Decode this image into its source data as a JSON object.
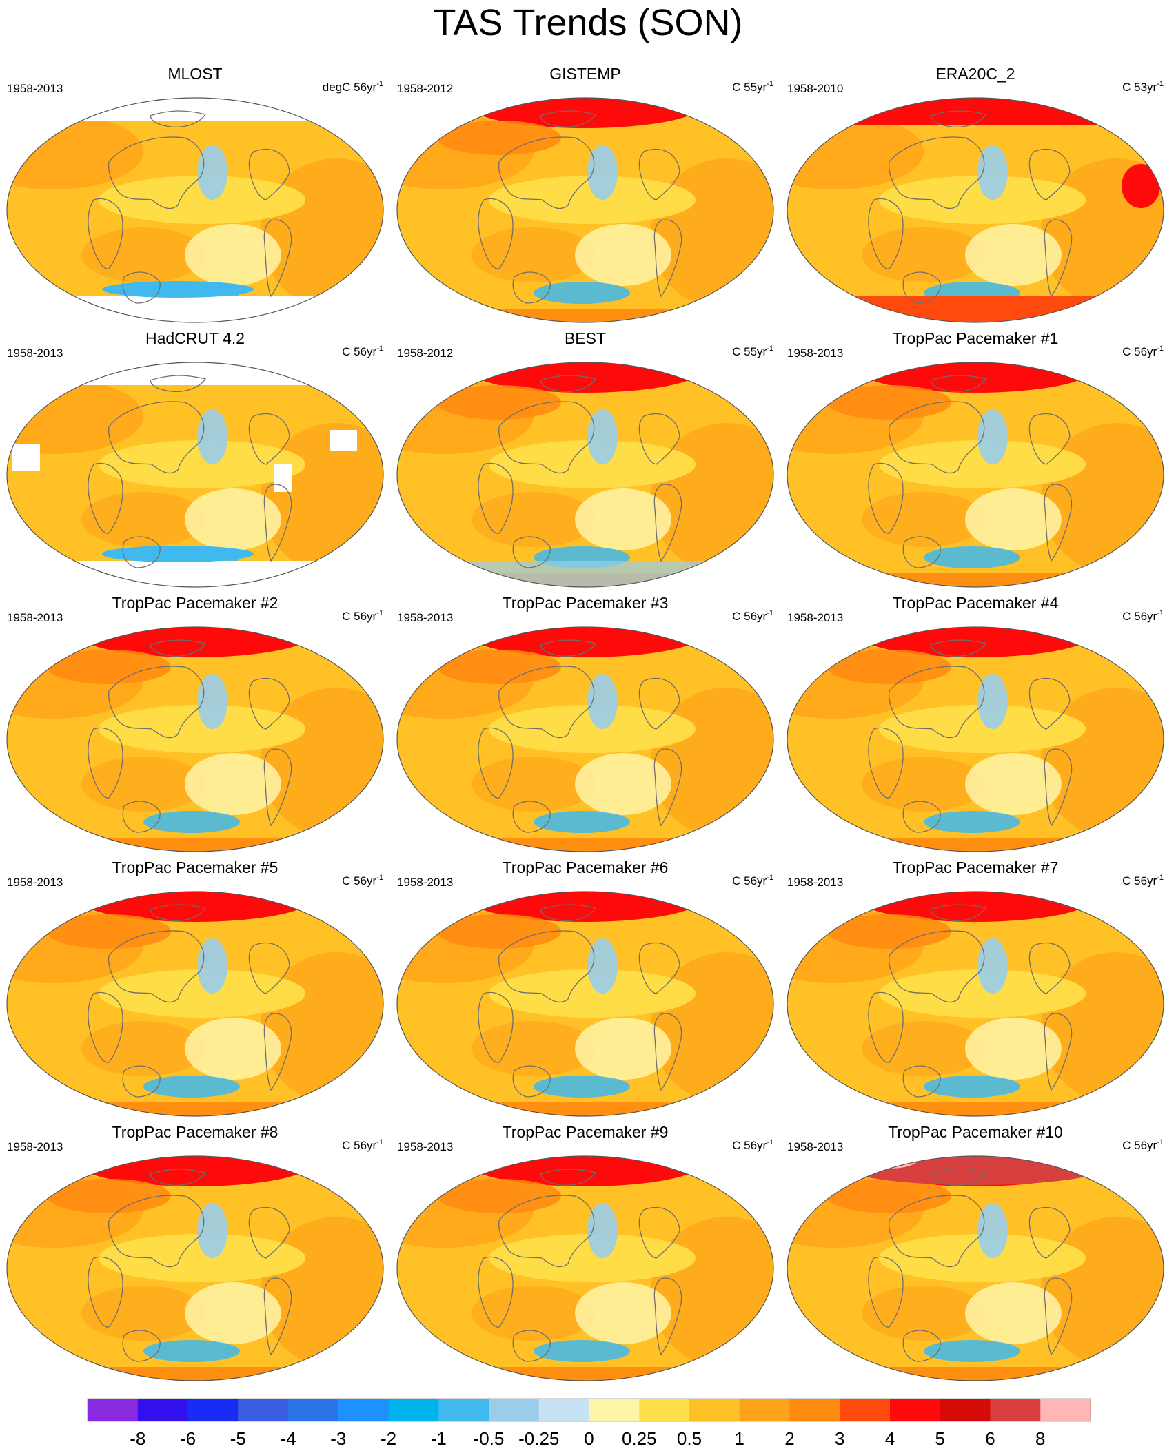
{
  "title": "TAS Trends (SON)",
  "panels": [
    {
      "name": "MLOST",
      "period": "1958-2013",
      "unit_prefix": "degC 56yr",
      "unit_exp": "-1",
      "style": "mlost"
    },
    {
      "name": "GISTEMP",
      "period": "1958-2012",
      "unit_prefix": "C 55yr",
      "unit_exp": "-1",
      "style": "gistemp"
    },
    {
      "name": "ERA20C_2",
      "period": "1958-2010",
      "unit_prefix": "C 53yr",
      "unit_exp": "-1",
      "style": "era"
    },
    {
      "name": "HadCRUT 4.2",
      "period": "1958-2013",
      "unit_prefix": "C 56yr",
      "unit_exp": "-1",
      "style": "hadcrut"
    },
    {
      "name": "BEST",
      "period": "1958-2012",
      "unit_prefix": "C 55yr",
      "unit_exp": "-1",
      "style": "best"
    },
    {
      "name": "TropPac Pacemaker #1",
      "period": "1958-2013",
      "unit_prefix": "C 56yr",
      "unit_exp": "-1",
      "style": "model"
    },
    {
      "name": "TropPac Pacemaker #2",
      "period": "1958-2013",
      "unit_prefix": "C 56yr",
      "unit_exp": "-1",
      "style": "model"
    },
    {
      "name": "TropPac Pacemaker #3",
      "period": "1958-2013",
      "unit_prefix": "C 56yr",
      "unit_exp": "-1",
      "style": "model"
    },
    {
      "name": "TropPac Pacemaker #4",
      "period": "1958-2013",
      "unit_prefix": "C 56yr",
      "unit_exp": "-1",
      "style": "model"
    },
    {
      "name": "TropPac Pacemaker #5",
      "period": "1958-2013",
      "unit_prefix": "C 56yr",
      "unit_exp": "-1",
      "style": "model"
    },
    {
      "name": "TropPac Pacemaker #6",
      "period": "1958-2013",
      "unit_prefix": "C 56yr",
      "unit_exp": "-1",
      "style": "model"
    },
    {
      "name": "TropPac Pacemaker #7",
      "period": "1958-2013",
      "unit_prefix": "C 56yr",
      "unit_exp": "-1",
      "style": "model"
    },
    {
      "name": "TropPac Pacemaker #8",
      "period": "1958-2013",
      "unit_prefix": "C 56yr",
      "unit_exp": "-1",
      "style": "model"
    },
    {
      "name": "TropPac Pacemaker #9",
      "period": "1958-2013",
      "unit_prefix": "C 56yr",
      "unit_exp": "-1",
      "style": "model"
    },
    {
      "name": "TropPac Pacemaker #10",
      "period": "1958-2013",
      "unit_prefix": "C 56yr",
      "unit_exp": "-1",
      "style": "model10"
    }
  ],
  "chart_data": {
    "type": "heatmap",
    "title": "TAS Trends (SON)",
    "projection": "robinson-like global map",
    "layout": "5 rows x 3 columns",
    "colorbar": {
      "tick_labels": [
        "-8",
        "-6",
        "-5",
        "-4",
        "-3",
        "-2",
        "-1",
        "-0.5",
        "-0.25",
        "0",
        "0.25",
        "0.5",
        "1",
        "2",
        "3",
        "4",
        "5",
        "6",
        "8"
      ],
      "colors": [
        "#8a2be2",
        "#3311ee",
        "#1a2bf5",
        "#3a5ee0",
        "#2b73e6",
        "#1e90ff",
        "#00b2ee",
        "#3fb9ee",
        "#99cdea",
        "#c6e2f4",
        "#fff5a8",
        "#ffe04a",
        "#ffc125",
        "#ffa41a",
        "#ff8a10",
        "#ff4a0e",
        "#ff0a0a",
        "#d70a0a",
        "#d84040",
        "#ffb6b6"
      ]
    }
  }
}
